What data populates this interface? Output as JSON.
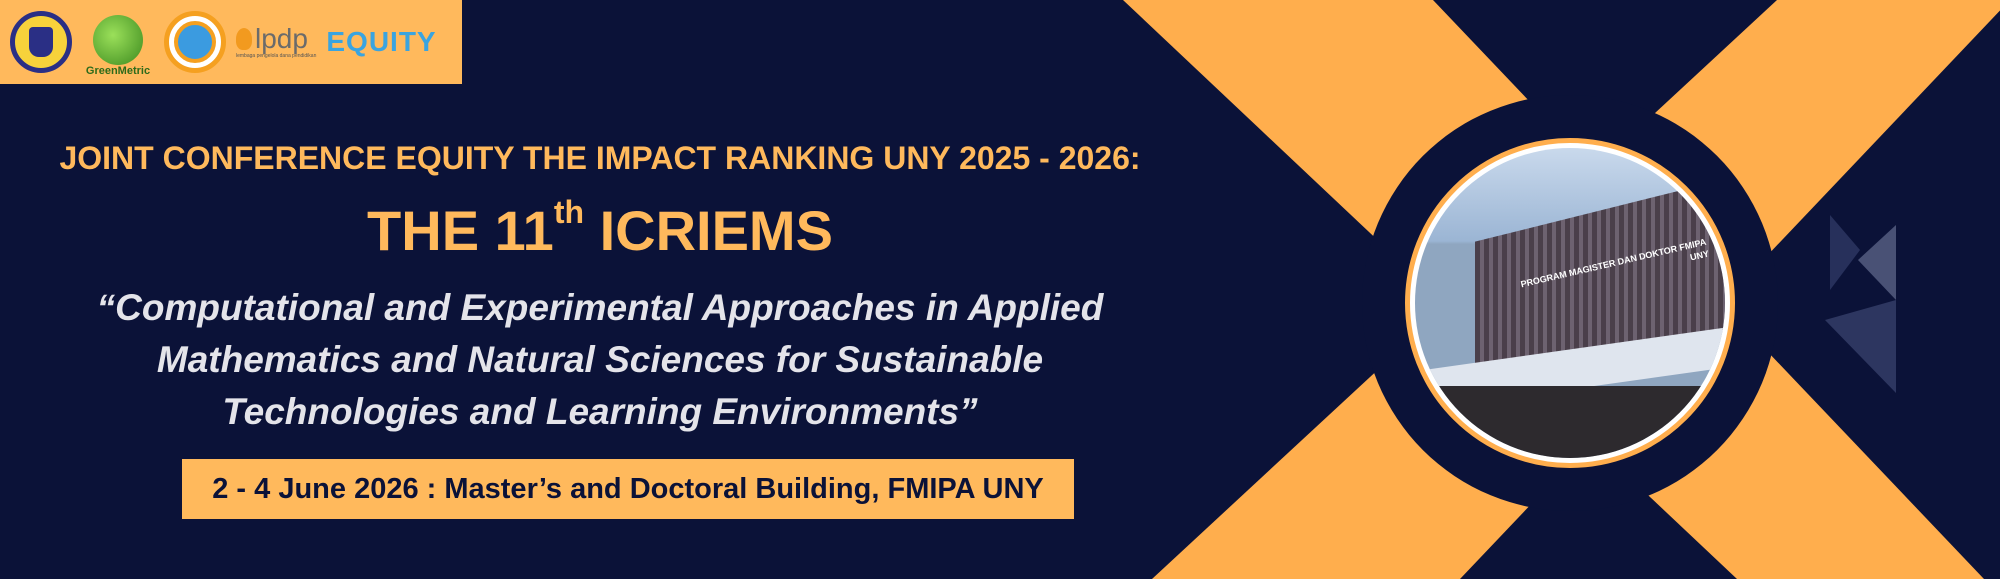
{
  "colors": {
    "background": "#0b1238",
    "accent": "#ffb95c",
    "x_shape": "#ffae4d",
    "theme_text": "#e4e4ea"
  },
  "logos": {
    "uny": "Universitas Negeri Yogyakarta",
    "greenmetric": "GreenMetric",
    "dikti": "Diktisaintek Berdampak",
    "lpdp": "lpdp",
    "lpdp_sub": "lembaga pengelola dana pendidikan",
    "equity": "EQUITY"
  },
  "header": {
    "title_line1": "JOINT CONFERENCE EQUITY THE IMPACT RANKING UNY 2025 - 2026:",
    "title_prefix": "THE 11",
    "title_sup": "th",
    "title_suffix": " ICRIEMS"
  },
  "theme": {
    "line1": "“Computational and Experimental Approaches in Applied",
    "line2": "Mathematics and Natural Sciences for Sustainable",
    "line3": "Technologies and Learning Environments”"
  },
  "event": {
    "date_location": "2 - 4 June 2026 : Master’s and Doctoral Building, FMIPA UNY"
  },
  "photo": {
    "sign_text": "PROGRAM MAGISTER DAN DOKTOR FMIPA UNY"
  }
}
